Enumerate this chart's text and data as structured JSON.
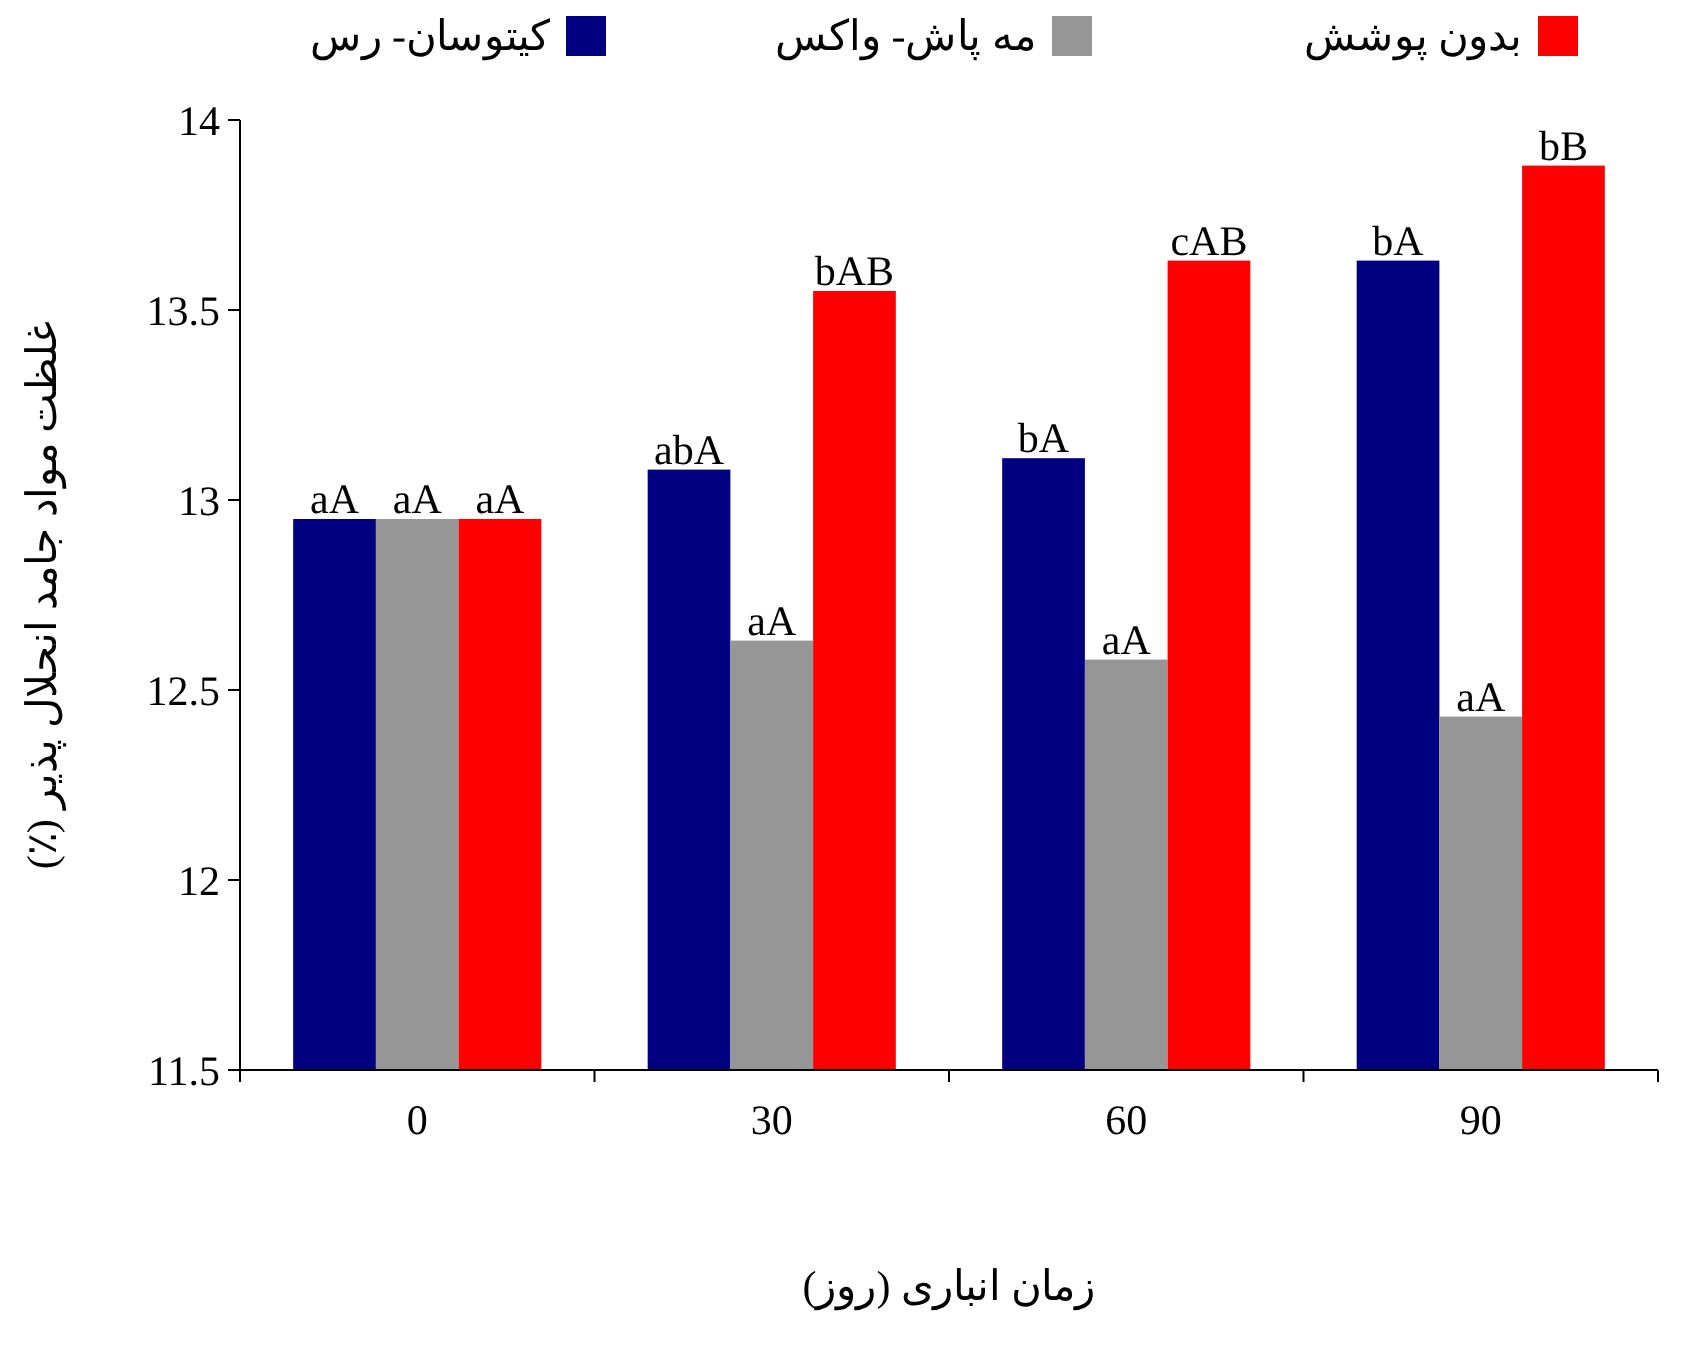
{
  "chart_data": {
    "type": "bar",
    "xlabel": "زمان انباری (روز)",
    "ylabel": "غلظت مواد جامد انحلال پذیر (٪)",
    "categories": [
      "0",
      "30",
      "60",
      "90"
    ],
    "series": [
      {
        "name": "کیتوسان- رس",
        "color": "#000080",
        "values": [
          12.95,
          13.08,
          13.11,
          13.63
        ],
        "value_labels": [
          "aA",
          "abA",
          "bA",
          "bA"
        ]
      },
      {
        "name": "مه پاش- واکس",
        "color": "#969696",
        "values": [
          12.95,
          12.63,
          12.58,
          12.43
        ],
        "value_labels": [
          "aA",
          "aA",
          "aA",
          "aA"
        ]
      },
      {
        "name": "بدون پوشش",
        "color": "#ff0000",
        "values": [
          12.95,
          13.55,
          13.63,
          13.88
        ],
        "value_labels": [
          "aA",
          "bAB",
          "cAB",
          "bB"
        ]
      }
    ],
    "ylim": [
      11.5,
      14
    ],
    "yticks": [
      11.5,
      12,
      12.5,
      13,
      13.5,
      14
    ],
    "legend": "top",
    "grid": false
  }
}
